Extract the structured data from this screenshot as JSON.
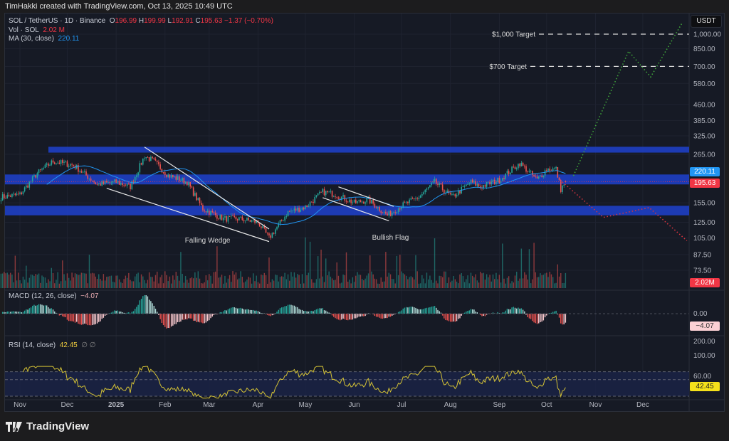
{
  "credit": "TimHakki created with TradingView.com, Oct 13, 2025 10:49 UTC",
  "legend": {
    "symbol": "SOL / TetherUS · 1D · Binance",
    "o_label": "O",
    "o": "196.99",
    "h_label": "H",
    "h": "199.99",
    "l_label": "L",
    "l": "192.91",
    "c_label": "C",
    "c": "195.63",
    "change": "−1.37 (−0.70%)",
    "vol_label": "Vol · SOL",
    "vol": "2.02 M",
    "ma_label": "MA (30, close)",
    "ma": "220.11",
    "macd_label": "MACD (12, 26, close)",
    "macd": "−4.07",
    "rsi_label": "RSI (14, close)",
    "rsi": "42.45",
    "rsi_extra": "∅ ∅"
  },
  "currency": "USDT",
  "price_tags": {
    "ma": "220.11",
    "last": "195.63",
    "volume": "2.02M",
    "macd": "−4.07",
    "rsi": "42.45"
  },
  "colors": {
    "up": "#26a69a",
    "down": "#ef5350",
    "ma": "#2196f3",
    "zone": "#1e3fc4",
    "rsi": "#d4c235",
    "last": "#f23645"
  },
  "logo": "TradingView",
  "chart_data": {
    "type": "candlestick",
    "scale": "log",
    "y_ticks": [
      "1,000.00",
      "850.00",
      "700.00",
      "580.00",
      "460.00",
      "385.00",
      "325.00",
      "265.00",
      "155.00",
      "125.00",
      "105.00",
      "87.50",
      "73.50"
    ],
    "y_tick_values": [
      1000,
      850,
      700,
      580,
      460,
      385,
      325,
      265,
      155,
      125,
      105,
      87.5,
      73.5
    ],
    "x_ticks": [
      {
        "label": "Nov",
        "date": "2024-11-01"
      },
      {
        "label": "Dec",
        "date": "2024-12-01"
      },
      {
        "label": "2025",
        "date": "2025-01-01"
      },
      {
        "label": "Feb",
        "date": "2025-02-01"
      },
      {
        "label": "Mar",
        "date": "2025-03-01"
      },
      {
        "label": "Apr",
        "date": "2025-04-01"
      },
      {
        "label": "May",
        "date": "2025-05-01"
      },
      {
        "label": "Jun",
        "date": "2025-06-01"
      },
      {
        "label": "Jul",
        "date": "2025-07-01"
      },
      {
        "label": "Aug",
        "date": "2025-08-01"
      },
      {
        "label": "Sep",
        "date": "2025-09-01"
      },
      {
        "label": "Oct",
        "date": "2025-10-01"
      },
      {
        "label": "Nov",
        "date": "2025-11-01"
      },
      {
        "label": "Dec",
        "date": "2025-12-01"
      }
    ],
    "price_path": [
      [
        "2024-10-20",
        165
      ],
      [
        "2024-11-01",
        170
      ],
      [
        "2024-11-12",
        215
      ],
      [
        "2024-11-22",
        245
      ],
      [
        "2024-12-05",
        235
      ],
      [
        "2024-12-20",
        190
      ],
      [
        "2025-01-01",
        195
      ],
      [
        "2025-01-10",
        185
      ],
      [
        "2025-01-19",
        260
      ],
      [
        "2025-01-25",
        245
      ],
      [
        "2025-02-03",
        210
      ],
      [
        "2025-02-15",
        195
      ],
      [
        "2025-02-25",
        145
      ],
      [
        "2025-03-10",
        130
      ],
      [
        "2025-03-20",
        130
      ],
      [
        "2025-04-01",
        125
      ],
      [
        "2025-04-08",
        105
      ],
      [
        "2025-04-20",
        140
      ],
      [
        "2025-05-01",
        148
      ],
      [
        "2025-05-12",
        175
      ],
      [
        "2025-05-20",
        170
      ],
      [
        "2025-06-01",
        155
      ],
      [
        "2025-06-10",
        160
      ],
      [
        "2025-06-22",
        135
      ],
      [
        "2025-07-01",
        150
      ],
      [
        "2025-07-12",
        165
      ],
      [
        "2025-07-22",
        195
      ],
      [
        "2025-08-02",
        165
      ],
      [
        "2025-08-14",
        195
      ],
      [
        "2025-08-20",
        185
      ],
      [
        "2025-09-01",
        200
      ],
      [
        "2025-09-14",
        240
      ],
      [
        "2025-09-25",
        200
      ],
      [
        "2025-10-01",
        225
      ],
      [
        "2025-10-07",
        225
      ],
      [
        "2025-10-10",
        180
      ],
      [
        "2025-10-13",
        195.63
      ]
    ],
    "last": {
      "open": 196.99,
      "high": 199.99,
      "low": 192.91,
      "close": 195.63,
      "volume": "2.02M"
    },
    "ma_period": 30,
    "macd_params": [
      12,
      26
    ],
    "rsi_period": 14,
    "rsi_levels": [
      30,
      60
    ],
    "zones": [
      [
        270,
        288
      ],
      [
        190,
        212
      ],
      [
        135,
        150
      ]
    ],
    "targets": [
      {
        "label": "$1,000 Target",
        "price": 1000
      },
      {
        "label": "$700 Target",
        "price": 700
      }
    ],
    "trendlines": [
      {
        "from": [
          "2025-01-19",
          287
        ],
        "to": [
          "2025-04-08",
          116
        ]
      },
      {
        "from": [
          "2024-12-26",
          182
        ],
        "to": [
          "2025-04-08",
          101
        ]
      },
      {
        "from": [
          "2025-05-22",
          185
        ],
        "to": [
          "2025-06-26",
          149
        ]
      },
      {
        "from": [
          "2025-05-12",
          164
        ],
        "to": [
          "2025-06-23",
          127
        ]
      }
    ],
    "annotations": [
      {
        "label": "Falling Wedge",
        "date": "2025-02-28",
        "price": 100
      },
      {
        "label": "Bullish Flag",
        "date": "2025-06-24",
        "price": 103
      }
    ],
    "projection_bull": [
      [
        "2025-10-18",
        209
      ],
      [
        "2025-11-22",
        828
      ],
      [
        "2025-12-06",
        623
      ],
      [
        "2025-12-26",
        1134
      ]
    ],
    "projection_bear": [
      [
        "2025-10-11",
        195
      ],
      [
        "2025-11-06",
        132
      ],
      [
        "2025-12-05",
        147
      ],
      [
        "2025-12-29",
        102
      ]
    ]
  }
}
